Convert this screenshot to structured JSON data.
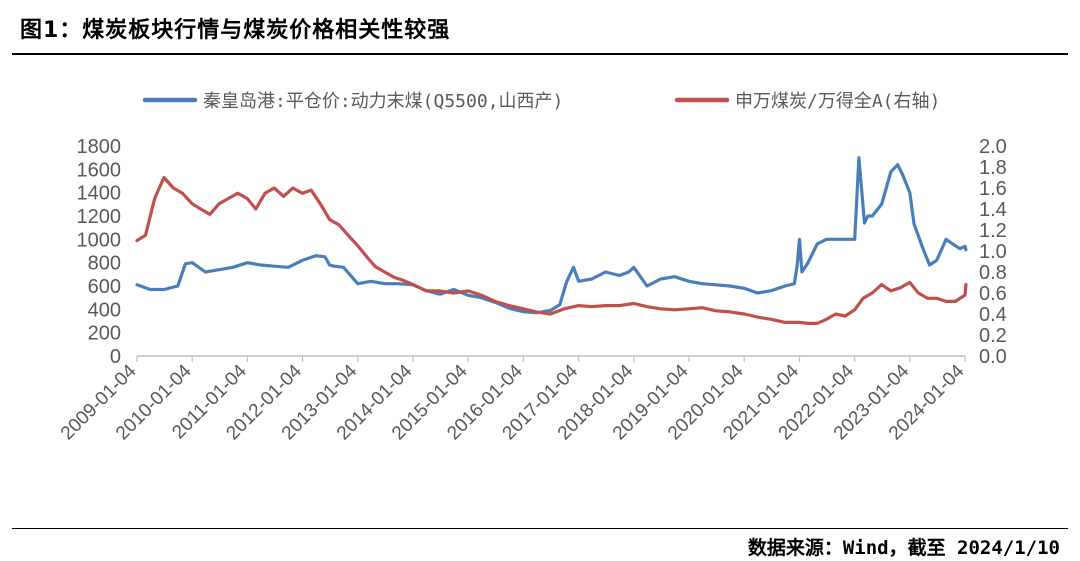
{
  "header": {
    "title": "图1：煤炭板块行情与煤炭价格相关性较强"
  },
  "footer": {
    "source": "数据来源：Wind，截至 2024/1/10"
  },
  "colors": {
    "series_blue": "#4A7EBB",
    "series_red": "#C0504D",
    "axis": "#BFBFBF",
    "tick_text": "#595959"
  },
  "chart_data": {
    "type": "line",
    "title": "",
    "xlabel": "",
    "ylabel": "",
    "y_left_range": [
      0,
      1800
    ],
    "y_right_range": [
      0,
      2.0
    ],
    "left_ticks": [
      "0",
      "200",
      "400",
      "600",
      "800",
      "1000",
      "1200",
      "1400",
      "1600",
      "1800"
    ],
    "right_ticks": [
      "0.0",
      "0.2",
      "0.4",
      "0.6",
      "0.8",
      "1.0",
      "1.2",
      "1.4",
      "1.6",
      "1.8",
      "2.0"
    ],
    "x_ticks": [
      "2009-01-04",
      "2010-01-04",
      "2011-01-04",
      "2012-01-04",
      "2013-01-04",
      "2014-01-04",
      "2015-01-04",
      "2016-01-04",
      "2017-01-04",
      "2018-01-04",
      "2019-01-04",
      "2020-01-04",
      "2021-01-04",
      "2022-01-04",
      "2023-01-04",
      "2024-01-04"
    ],
    "grid": false,
    "legend": "top",
    "series": [
      {
        "name": "秦皇岛港:平仓价:动力末煤(Q5500,山西产)",
        "axis": "left",
        "color": "#4A7EBB",
        "x": [
          "2009-01-04",
          "2009-04-01",
          "2009-07-01",
          "2009-10-01",
          "2009-11-20",
          "2010-01-04",
          "2010-04-01",
          "2010-07-01",
          "2010-10-01",
          "2011-01-04",
          "2011-04-01",
          "2011-07-01",
          "2011-10-01",
          "2012-01-04",
          "2012-04-01",
          "2012-06-01",
          "2012-07-01",
          "2012-08-01",
          "2012-10-01",
          "2013-01-04",
          "2013-04-01",
          "2013-07-01",
          "2013-10-01",
          "2014-01-04",
          "2014-04-01",
          "2014-07-01",
          "2014-10-01",
          "2015-01-04",
          "2015-04-01",
          "2015-07-01",
          "2015-10-01",
          "2016-01-04",
          "2016-04-01",
          "2016-07-01",
          "2016-09-01",
          "2016-10-15",
          "2016-11-01",
          "2016-12-01",
          "2017-01-04",
          "2017-04-01",
          "2017-07-01",
          "2017-10-01",
          "2017-12-01",
          "2018-01-04",
          "2018-04-01",
          "2018-07-01",
          "2018-10-01",
          "2019-01-04",
          "2019-04-01",
          "2019-07-01",
          "2019-10-01",
          "2020-01-04",
          "2020-04-01",
          "2020-07-01",
          "2020-10-01",
          "2020-12-01",
          "2020-12-20",
          "2021-01-04",
          "2021-01-20",
          "2021-03-01",
          "2021-05-01",
          "2021-07-01",
          "2021-09-01",
          "2021-10-15",
          "2021-11-01",
          "2021-12-01",
          "2022-01-04",
          "2022-02-01",
          "2022-03-10",
          "2022-04-01",
          "2022-05-01",
          "2022-07-01",
          "2022-09-01",
          "2022-10-15",
          "2022-11-15",
          "2023-01-04",
          "2023-02-01",
          "2023-04-01",
          "2023-05-15",
          "2023-07-01",
          "2023-09-01",
          "2023-10-15",
          "2023-12-01",
          "2024-01-04",
          "2024-01-10"
        ],
        "values": [
          610,
          570,
          570,
          600,
          790,
          800,
          720,
          740,
          760,
          800,
          780,
          770,
          760,
          820,
          860,
          850,
          780,
          770,
          760,
          620,
          640,
          620,
          620,
          610,
          560,
          530,
          570,
          520,
          500,
          460,
          410,
          380,
          370,
          390,
          440,
          630,
          680,
          760,
          640,
          660,
          720,
          690,
          720,
          760,
          600,
          660,
          680,
          640,
          620,
          610,
          600,
          580,
          540,
          560,
          600,
          620,
          780,
          1000,
          720,
          800,
          960,
          1000,
          1000,
          1000,
          1000,
          1000,
          1000,
          1700,
          1140,
          1200,
          1200,
          1300,
          1580,
          1640,
          1560,
          1400,
          1130,
          920,
          780,
          820,
          1000,
          960,
          920,
          940,
          910
        ]
      },
      {
        "name": "申万煤炭/万得全A(右轴)",
        "axis": "right",
        "color": "#C0504D",
        "x": [
          "2009-01-04",
          "2009-03-01",
          "2009-05-01",
          "2009-07-01",
          "2009-09-01",
          "2009-11-01",
          "2010-01-04",
          "2010-03-01",
          "2010-05-01",
          "2010-07-01",
          "2010-09-01",
          "2010-11-01",
          "2011-01-04",
          "2011-03-01",
          "2011-05-01",
          "2011-07-01",
          "2011-09-01",
          "2011-11-01",
          "2012-01-04",
          "2012-03-01",
          "2012-05-01",
          "2012-07-01",
          "2012-09-01",
          "2012-11-01",
          "2013-01-04",
          "2013-03-01",
          "2013-05-01",
          "2013-07-01",
          "2013-09-01",
          "2013-11-01",
          "2014-01-04",
          "2014-04-01",
          "2014-07-01",
          "2014-10-01",
          "2015-01-04",
          "2015-04-01",
          "2015-07-01",
          "2015-10-01",
          "2016-01-04",
          "2016-04-01",
          "2016-07-01",
          "2016-10-01",
          "2017-01-04",
          "2017-04-01",
          "2017-07-01",
          "2017-10-01",
          "2018-01-04",
          "2018-04-01",
          "2018-07-01",
          "2018-10-01",
          "2019-01-04",
          "2019-04-01",
          "2019-07-01",
          "2019-10-01",
          "2020-01-04",
          "2020-04-01",
          "2020-07-01",
          "2020-10-01",
          "2021-01-04",
          "2021-03-01",
          "2021-05-01",
          "2021-07-01",
          "2021-09-01",
          "2021-11-01",
          "2022-01-04",
          "2022-03-01",
          "2022-05-01",
          "2022-07-01",
          "2022-09-01",
          "2022-11-01",
          "2023-01-04",
          "2023-03-01",
          "2023-05-01",
          "2023-07-01",
          "2023-09-01",
          "2023-11-01",
          "2024-01-04",
          "2024-01-10"
        ],
        "values": [
          1.1,
          1.15,
          1.5,
          1.7,
          1.6,
          1.55,
          1.45,
          1.4,
          1.35,
          1.45,
          1.5,
          1.55,
          1.5,
          1.4,
          1.55,
          1.6,
          1.52,
          1.6,
          1.55,
          1.58,
          1.45,
          1.3,
          1.25,
          1.15,
          1.05,
          0.95,
          0.85,
          0.8,
          0.75,
          0.72,
          0.68,
          0.62,
          0.62,
          0.6,
          0.62,
          0.58,
          0.52,
          0.48,
          0.45,
          0.42,
          0.4,
          0.45,
          0.48,
          0.47,
          0.48,
          0.48,
          0.5,
          0.47,
          0.45,
          0.44,
          0.45,
          0.46,
          0.43,
          0.42,
          0.4,
          0.37,
          0.35,
          0.32,
          0.32,
          0.31,
          0.31,
          0.35,
          0.4,
          0.38,
          0.44,
          0.55,
          0.6,
          0.68,
          0.62,
          0.65,
          0.7,
          0.6,
          0.55,
          0.55,
          0.52,
          0.52,
          0.58,
          0.68
        ]
      }
    ]
  }
}
